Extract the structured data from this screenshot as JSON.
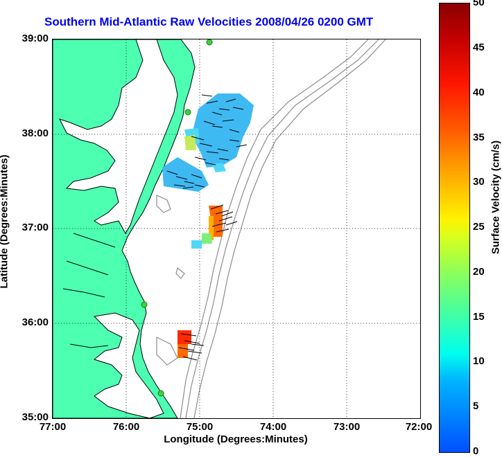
{
  "title": "Southern Mid-Atlantic Raw Velocities 2008/04/26 0200 GMT",
  "x_axis": {
    "label": "Longitude (Degrees:Minutes)",
    "ticks": [
      "77:00",
      "76:00",
      "75:00",
      "74:00",
      "73:00",
      "72:00"
    ]
  },
  "y_axis": {
    "label": "Latitude (Degrees:Minutes)",
    "ticks": [
      "39:00",
      "38:00",
      "37:00",
      "36:00",
      "35:00"
    ]
  },
  "colorbar": {
    "label": "Surface Velocity (cm/s)",
    "ticks": [
      "0",
      "5",
      "10",
      "15",
      "20",
      "25",
      "30",
      "35",
      "40",
      "45",
      "50"
    ],
    "min": 0,
    "max": 50
  },
  "colors": {
    "land": "#4dffb0",
    "water": "#ffffff",
    "coastline": "#000000",
    "bathymetry": "#8c8c8c",
    "title": "#0000ee",
    "station": "#3ad33a"
  },
  "map_extent": {
    "lon_min": -77.0,
    "lon_max": -72.0,
    "lat_min": 35.0,
    "lat_max": 39.0
  }
}
